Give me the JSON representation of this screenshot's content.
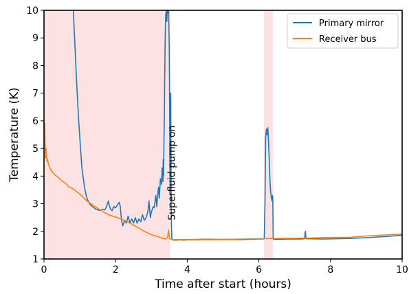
{
  "chart_data": {
    "type": "line",
    "xlabel": "Time after start (hours)",
    "ylabel": "Temperature (K)",
    "xlim": [
      0,
      10
    ],
    "ylim": [
      1,
      10
    ],
    "x_ticks": [
      0,
      2,
      4,
      6,
      8,
      10
    ],
    "y_ticks": [
      1,
      2,
      3,
      4,
      5,
      6,
      7,
      8,
      9,
      10
    ],
    "grid": false,
    "legend": {
      "placement": "top-right",
      "entries": [
        "Primary mirror",
        "Receiver bus"
      ]
    },
    "shaded_regions": [
      {
        "x_start": 0.0,
        "x_end": 3.52,
        "color": "#fde2e4"
      },
      {
        "x_start": 6.14,
        "x_end": 6.4,
        "color": "#fde2e4"
      }
    ],
    "annotations": [
      {
        "text": "Superfluid pump on",
        "x": 3.75,
        "y": 2.4,
        "rotation": -90
      }
    ],
    "series": [
      {
        "name": "Primary mirror",
        "color": "#1f77b4",
        "x": [
          0.82,
          0.84,
          0.88,
          0.92,
          0.96,
          1.0,
          1.03,
          1.06,
          1.1,
          1.13,
          1.17,
          1.2,
          1.25,
          1.3,
          1.35,
          1.4,
          1.45,
          1.5,
          1.55,
          1.6,
          1.65,
          1.7,
          1.73,
          1.76,
          1.8,
          1.82,
          1.86,
          1.9,
          1.95,
          2.0,
          2.05,
          2.1,
          2.13,
          2.15,
          2.17,
          2.2,
          2.25,
          2.3,
          2.35,
          2.4,
          2.45,
          2.5,
          2.55,
          2.6,
          2.65,
          2.7,
          2.75,
          2.8,
          2.85,
          2.9,
          2.93,
          2.97,
          3.0,
          3.05,
          3.08,
          3.12,
          3.15,
          3.18,
          3.2,
          3.22,
          3.25,
          3.28,
          3.3,
          3.32,
          3.33,
          3.34,
          3.35,
          3.36,
          3.37,
          3.38,
          3.39,
          3.4,
          3.42,
          3.43,
          3.44,
          3.45,
          3.47,
          3.48,
          3.5,
          3.51,
          3.52,
          3.53,
          3.54,
          3.55,
          3.56,
          3.57,
          3.6,
          3.7,
          3.8,
          3.9,
          4.0,
          4.5,
          5.0,
          5.5,
          6.0,
          6.1,
          6.15,
          6.17,
          6.19,
          6.21,
          6.23,
          6.25,
          6.27,
          6.29,
          6.31,
          6.33,
          6.35,
          6.37,
          6.38,
          6.39,
          6.4,
          6.45,
          6.8,
          7.2,
          7.28,
          7.29,
          7.3,
          7.31,
          7.32,
          7.8,
          8.5,
          9.0,
          9.5,
          10.0
        ],
        "y": [
          10.0,
          9.4,
          8.3,
          7.2,
          6.2,
          5.4,
          4.8,
          4.3,
          3.9,
          3.6,
          3.35,
          3.2,
          3.05,
          2.95,
          2.9,
          2.85,
          2.8,
          2.78,
          2.76,
          2.78,
          2.8,
          2.78,
          2.85,
          2.95,
          3.1,
          2.95,
          2.8,
          2.75,
          2.9,
          2.85,
          2.95,
          3.05,
          2.9,
          2.6,
          2.35,
          2.2,
          2.4,
          2.3,
          2.55,
          2.3,
          2.45,
          2.3,
          2.5,
          2.3,
          2.45,
          2.35,
          2.6,
          2.4,
          2.5,
          2.7,
          3.1,
          2.5,
          2.7,
          2.9,
          2.85,
          3.3,
          2.9,
          3.4,
          3.6,
          3.2,
          3.9,
          3.7,
          4.3,
          3.8,
          4.6,
          4.0,
          5.2,
          6.2,
          7.5,
          8.6,
          9.4,
          9.85,
          10.0,
          9.6,
          10.0,
          9.9,
          10.0,
          10.0,
          8.5,
          6.0,
          3.5,
          4.5,
          7.0,
          3.0,
          2.1,
          1.75,
          1.68,
          1.68,
          1.69,
          1.68,
          1.69,
          1.7,
          1.7,
          1.7,
          1.72,
          1.72,
          1.73,
          3.0,
          5.4,
          5.7,
          5.5,
          5.75,
          5.2,
          4.6,
          3.8,
          3.4,
          3.2,
          3.1,
          3.3,
          3.15,
          1.72,
          1.71,
          1.72,
          1.72,
          1.73,
          1.95,
          2.0,
          1.8,
          1.73,
          1.72,
          1.74,
          1.77,
          1.81,
          1.86
        ]
      },
      {
        "name": "Receiver bus",
        "color": "#ff7f0e",
        "x": [
          0.02,
          0.04,
          0.06,
          0.08,
          0.1,
          0.12,
          0.15,
          0.2,
          0.3,
          0.4,
          0.5,
          0.6,
          0.7,
          0.8,
          0.9,
          1.0,
          1.2,
          1.4,
          1.6,
          1.8,
          2.0,
          2.2,
          2.4,
          2.6,
          2.8,
          3.0,
          3.2,
          3.3,
          3.4,
          3.45,
          3.48,
          3.5,
          3.52,
          3.55,
          3.6,
          4.0,
          4.5,
          5.0,
          5.5,
          6.0,
          6.4,
          7.0,
          7.5,
          8.0,
          8.5,
          9.0,
          9.5,
          10.0
        ],
        "y": [
          5.95,
          4.65,
          5.0,
          4.55,
          4.6,
          4.45,
          4.35,
          4.2,
          4.05,
          3.95,
          3.82,
          3.75,
          3.6,
          3.55,
          3.45,
          3.35,
          3.1,
          2.92,
          2.75,
          2.6,
          2.52,
          2.42,
          2.3,
          2.15,
          2.0,
          1.88,
          1.8,
          1.75,
          1.72,
          1.78,
          2.05,
          1.78,
          1.72,
          1.72,
          1.7,
          1.7,
          1.72,
          1.71,
          1.72,
          1.73,
          1.74,
          1.75,
          1.76,
          1.78,
          1.78,
          1.83,
          1.87,
          1.9
        ]
      }
    ]
  }
}
